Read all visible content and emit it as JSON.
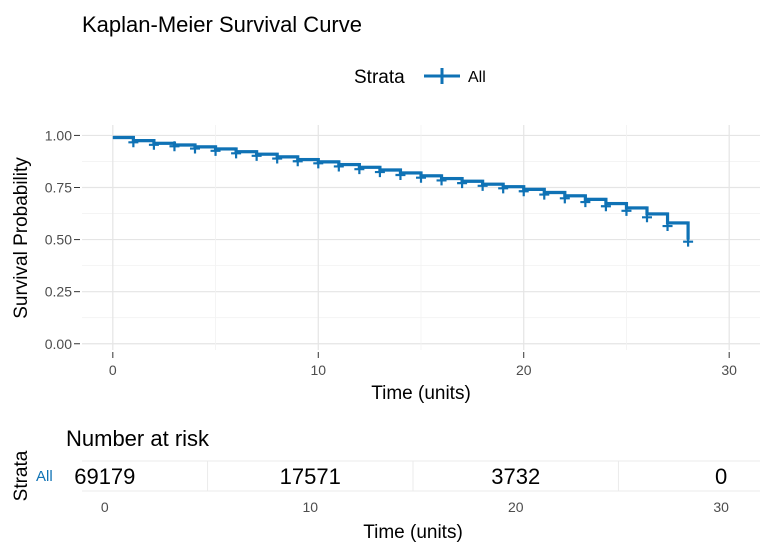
{
  "chart_data": [
    {
      "type": "line",
      "title": "Kaplan-Meier Survival Curve",
      "xlabel": "Time (units)",
      "ylabel": "Survival Probability",
      "xlim": [
        -1.5,
        31.5
      ],
      "ylim": [
        -0.03,
        1.05
      ],
      "x_ticks": [
        0,
        10,
        20,
        30
      ],
      "y_ticks": [
        0.0,
        0.25,
        0.5,
        0.75,
        1.0
      ],
      "y_tick_labels": [
        "0.00",
        "0.25",
        "0.50",
        "0.75",
        "1.00"
      ],
      "legend": {
        "title": "Strata",
        "position": "top"
      },
      "grid": true,
      "series": [
        {
          "name": "All",
          "color": "#0f72b5",
          "step_times": [
            0,
            1,
            2,
            3,
            4,
            5,
            6,
            7,
            8,
            9,
            10,
            11,
            12,
            13,
            14,
            15,
            16,
            17,
            18,
            19,
            20,
            21,
            22,
            23,
            24,
            25,
            26,
            27,
            28
          ],
          "survival": [
            0.99,
            0.975,
            0.962,
            0.954,
            0.945,
            0.935,
            0.922,
            0.91,
            0.897,
            0.884,
            0.873,
            0.86,
            0.847,
            0.834,
            0.82,
            0.806,
            0.793,
            0.78,
            0.766,
            0.754,
            0.741,
            0.726,
            0.71,
            0.693,
            0.673,
            0.652,
            0.623,
            0.58,
            0.5
          ],
          "censor_times": [
            1,
            2,
            3,
            4,
            5,
            6,
            7,
            8,
            9,
            10,
            11,
            12,
            13,
            14,
            15,
            16,
            17,
            18,
            19,
            20,
            21,
            22,
            23,
            24,
            25,
            26,
            27,
            28
          ],
          "censor_survival": [
            0.967,
            0.955,
            0.948,
            0.937,
            0.926,
            0.914,
            0.902,
            0.889,
            0.876,
            0.866,
            0.851,
            0.838,
            0.824,
            0.81,
            0.797,
            0.784,
            0.771,
            0.758,
            0.746,
            0.732,
            0.716,
            0.698,
            0.68,
            0.66,
            0.638,
            0.607,
            0.565,
            0.49
          ]
        }
      ]
    },
    {
      "type": "table",
      "title": "Number at risk",
      "xlabel": "Time (units)",
      "ylabel": "Strata",
      "xlim": [
        -1.5,
        31.5
      ],
      "x_ticks": [
        0,
        10,
        20,
        30
      ],
      "rows": [
        {
          "label": "All",
          "color": "#0f72b5",
          "times": [
            0,
            10,
            20,
            30
          ],
          "values": [
            "69179",
            "17571",
            "3732",
            "0"
          ]
        }
      ]
    }
  ]
}
